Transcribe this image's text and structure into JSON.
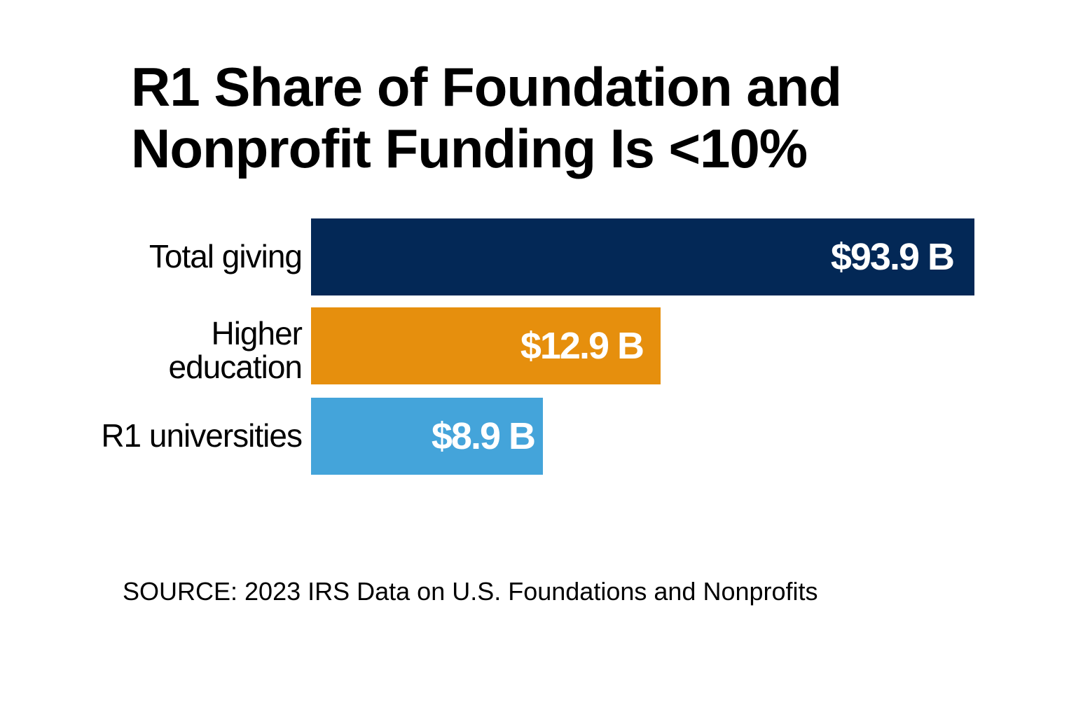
{
  "chart_data": {
    "type": "bar",
    "orientation": "horizontal",
    "title": "R1 Share of Foundation and Nonprofit Funding Is <10%",
    "title_lines": [
      "R1 Share of Foundation and",
      "Nonprofit Funding Is <10%"
    ],
    "categories": [
      "Total giving",
      "Higher education",
      "R1 universities"
    ],
    "category_lines": [
      [
        "Total giving"
      ],
      [
        "Higher",
        "education"
      ],
      [
        "R1 universities"
      ]
    ],
    "values": [
      93.9,
      12.9,
      8.9
    ],
    "unit": "billion USD",
    "data_labels": [
      "$93.9 B",
      "$12.9 B",
      "$8.9 B"
    ],
    "colors": [
      "#032856",
      "#e68f0d",
      "#44a4da"
    ],
    "grid": false,
    "legend": "none",
    "source": "SOURCE: 2023 IRS Data on U.S. Foundations and Nonprofits"
  }
}
